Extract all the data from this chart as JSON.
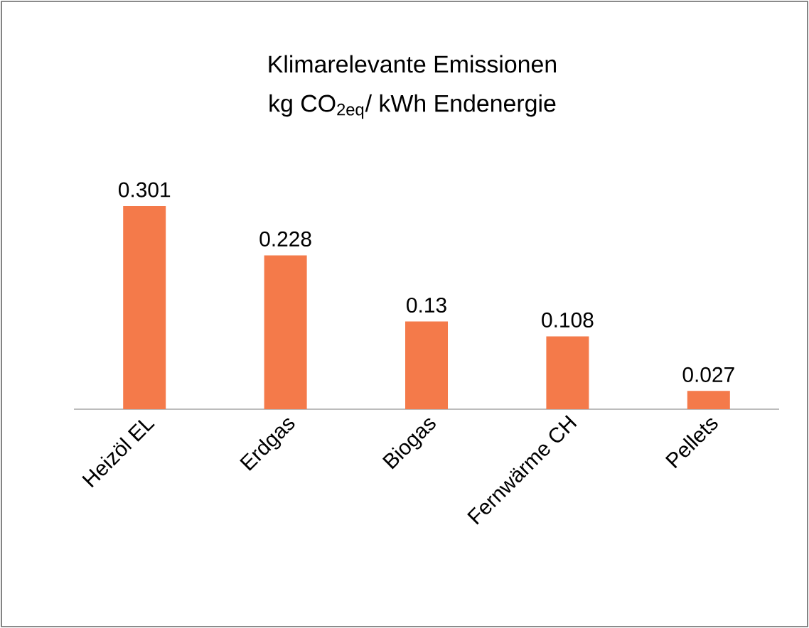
{
  "chart_data": {
    "type": "bar",
    "title": "Klimarelevante Emissionen",
    "subtitle": "kg CO$_{2eq}$/ kWh Endenergie",
    "categories": [
      "Heizöl EL",
      "Erdgas",
      "Biogas",
      "Fernwärme CH",
      "Pellets"
    ],
    "values": [
      0.301,
      0.228,
      0.13,
      0.108,
      0.027
    ],
    "color": "#f47a4a",
    "data_labels": true
  }
}
